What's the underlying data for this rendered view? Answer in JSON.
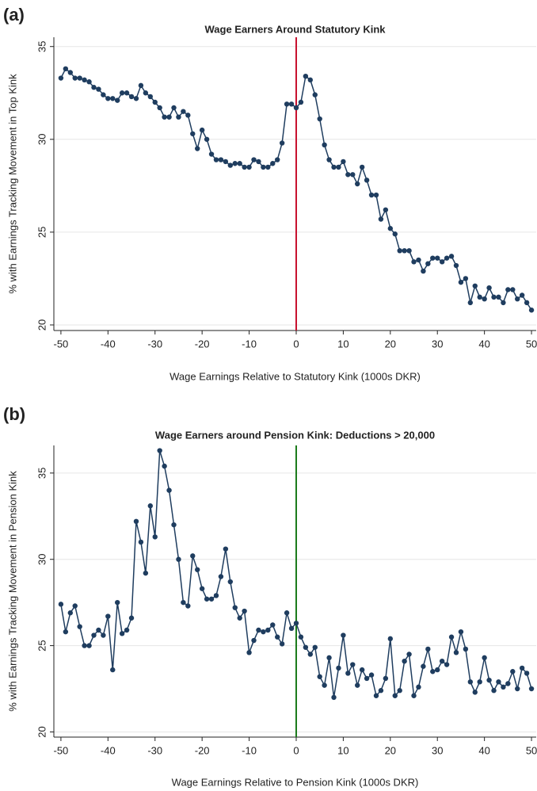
{
  "chart_data": [
    {
      "type": "line",
      "panel_label": "(a)",
      "title": "Wage Earners Around Statutory Kink",
      "x_label": "Wage Earnings Relative to Statutory Kink (1000s DKR)",
      "y_label": "% with Earnings Tracking Movement in Top Kink",
      "x": [
        -50,
        -49,
        -48,
        -47,
        -46,
        -45,
        -44,
        -43,
        -42,
        -41,
        -40,
        -39,
        -38,
        -37,
        -36,
        -35,
        -34,
        -33,
        -32,
        -31,
        -30,
        -29,
        -28,
        -27,
        -26,
        -25,
        -24,
        -23,
        -22,
        -21,
        -20,
        -19,
        -18,
        -17,
        -16,
        -15,
        -14,
        -13,
        -12,
        -11,
        -10,
        -9,
        -8,
        -7,
        -6,
        -5,
        -4,
        -3,
        -2,
        -1,
        0,
        1,
        2,
        3,
        4,
        5,
        6,
        7,
        8,
        9,
        10,
        11,
        12,
        13,
        14,
        15,
        16,
        17,
        18,
        19,
        20,
        21,
        22,
        23,
        24,
        25,
        26,
        27,
        28,
        29,
        30,
        31,
        32,
        33,
        34,
        35,
        36,
        37,
        38,
        39,
        40,
        41,
        42,
        43,
        44,
        45,
        46,
        47,
        48,
        49,
        50
      ],
      "series": [
        {
          "name": "Share",
          "color": "#1f3d5f",
          "values": [
            33.3,
            33.8,
            33.6,
            33.3,
            33.3,
            33.2,
            33.1,
            32.8,
            32.7,
            32.4,
            32.2,
            32.2,
            32.1,
            32.5,
            32.5,
            32.3,
            32.2,
            32.9,
            32.5,
            32.3,
            32.0,
            31.7,
            31.2,
            31.2,
            31.7,
            31.2,
            31.5,
            31.3,
            30.3,
            29.5,
            30.5,
            30.0,
            29.2,
            28.9,
            28.9,
            28.8,
            28.6,
            28.7,
            28.7,
            28.5,
            28.5,
            28.9,
            28.8,
            28.5,
            28.5,
            28.7,
            28.9,
            29.8,
            31.9,
            31.9,
            31.7,
            32.0,
            33.4,
            33.2,
            32.4,
            31.1,
            29.7,
            28.9,
            28.5,
            28.5,
            28.8,
            28.1,
            28.1,
            27.6,
            28.5,
            27.8,
            27.0,
            27.0,
            25.7,
            26.2,
            25.2,
            24.9,
            24.0,
            24.0,
            24.0,
            23.4,
            23.5,
            22.9,
            23.3,
            23.6,
            23.6,
            23.4,
            23.6,
            23.7,
            23.2,
            22.3,
            22.5,
            21.2,
            22.1,
            21.5,
            21.4,
            22.0,
            21.5,
            21.5,
            21.2,
            21.9,
            21.9,
            21.4,
            21.6,
            21.2,
            20.8
          ]
        }
      ],
      "kink_x": 0,
      "kink_color": "#c8102e",
      "xlim": [
        -51.5,
        51
      ],
      "xticks": [
        -50,
        -40,
        -30,
        -20,
        -10,
        0,
        10,
        20,
        30,
        40,
        50
      ],
      "ylim": [
        19.7,
        35.5
      ],
      "yticks": [
        20,
        25,
        30,
        35
      ],
      "grid": true
    },
    {
      "type": "line",
      "panel_label": "(b)",
      "title": "Wage Earners around Pension Kink: Deductions > 20,000",
      "x_label": "Wage Earnings Relative to Pension Kink (1000s DKR)",
      "y_label": "% with Earnings Tracking Movement in Pension Kink",
      "x": [
        -50,
        -49,
        -48,
        -47,
        -46,
        -45,
        -44,
        -43,
        -42,
        -41,
        -40,
        -39,
        -38,
        -37,
        -36,
        -35,
        -34,
        -33,
        -32,
        -31,
        -30,
        -29,
        -28,
        -27,
        -26,
        -25,
        -24,
        -23,
        -22,
        -21,
        -20,
        -19,
        -18,
        -17,
        -16,
        -15,
        -14,
        -13,
        -12,
        -11,
        -10,
        -9,
        -8,
        -7,
        -6,
        -5,
        -4,
        -3,
        -2,
        -1,
        0,
        1,
        2,
        3,
        4,
        5,
        6,
        7,
        8,
        9,
        10,
        11,
        12,
        13,
        14,
        15,
        16,
        17,
        18,
        19,
        20,
        21,
        22,
        23,
        24,
        25,
        26,
        27,
        28,
        29,
        30,
        31,
        32,
        33,
        34,
        35,
        36,
        37,
        38,
        39,
        40,
        41,
        42,
        43,
        44,
        45,
        46,
        47,
        48,
        49,
        50
      ],
      "series": [
        {
          "name": "Share",
          "color": "#1f3d5f",
          "values": [
            27.4,
            25.8,
            26.9,
            27.3,
            26.1,
            25.0,
            25.0,
            25.6,
            25.9,
            25.6,
            26.7,
            23.6,
            27.5,
            25.7,
            25.9,
            26.6,
            32.2,
            31.0,
            29.2,
            33.1,
            31.3,
            36.3,
            35.4,
            34.0,
            32.0,
            30.0,
            27.5,
            27.3,
            30.2,
            29.4,
            28.3,
            27.7,
            27.7,
            27.9,
            29.0,
            30.6,
            28.7,
            27.2,
            26.6,
            27.0,
            24.6,
            25.3,
            25.9,
            25.8,
            25.9,
            26.2,
            25.5,
            25.1,
            26.9,
            26.0,
            26.3,
            25.5,
            24.9,
            24.5,
            24.9,
            23.2,
            22.7,
            24.3,
            22.0,
            23.7,
            25.6,
            23.4,
            23.9,
            22.7,
            23.6,
            23.1,
            23.3,
            22.1,
            22.4,
            23.1,
            25.4,
            22.1,
            22.4,
            24.1,
            24.5,
            22.1,
            22.6,
            23.8,
            24.8,
            23.5,
            23.6,
            24.1,
            23.9,
            25.5,
            24.6,
            25.8,
            24.8,
            22.9,
            22.3,
            22.9,
            24.3,
            23.0,
            22.4,
            22.9,
            22.6,
            22.8,
            23.5,
            22.5,
            23.7,
            23.4,
            22.5
          ]
        }
      ],
      "kink_x": 0,
      "kink_color": "#1a7a1a",
      "xlim": [
        -51.5,
        51
      ],
      "xticks": [
        -50,
        -40,
        -30,
        -20,
        -10,
        0,
        10,
        20,
        30,
        40,
        50
      ],
      "ylim": [
        19.7,
        36.6
      ],
      "yticks": [
        20,
        25,
        30,
        35
      ],
      "grid": true
    }
  ]
}
